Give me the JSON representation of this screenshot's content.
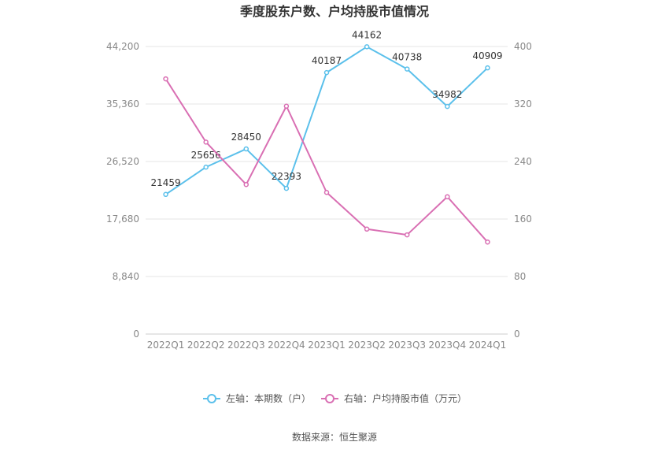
{
  "chart_data": {
    "type": "line",
    "title": "季度股东户数、户均持股市值情况",
    "categories": [
      "2022Q1",
      "2022Q2",
      "2022Q3",
      "2022Q4",
      "2023Q1",
      "2023Q2",
      "2023Q3",
      "2023Q4",
      "2024Q1"
    ],
    "left_axis": {
      "ticks": [
        "0",
        "8,840",
        "17,680",
        "26,520",
        "35,360",
        "44,200"
      ],
      "ylim": [
        0,
        44200
      ]
    },
    "right_axis": {
      "ticks": [
        "0",
        "80",
        "160",
        "240",
        "320",
        "400"
      ],
      "ylim": [
        0,
        400
      ]
    },
    "series": [
      {
        "name": "左轴：本期数（户）",
        "axis": "left",
        "color": "#5bc0eb",
        "values": [
          21459,
          25656,
          28450,
          22393,
          40187,
          44162,
          40738,
          34982,
          40909
        ],
        "labels": [
          "21459",
          "25656",
          "28450",
          "22393",
          "40187",
          "44162",
          "40738",
          "34982",
          "40909"
        ]
      },
      {
        "name": "右轴：户均持股市值（万元）",
        "axis": "right",
        "color": "#d96fb3",
        "values": [
          355,
          267,
          208,
          317,
          197,
          146,
          138,
          191,
          128
        ]
      }
    ],
    "grid": true,
    "legend": "bottom"
  },
  "source": "数据来源：恒生聚源"
}
